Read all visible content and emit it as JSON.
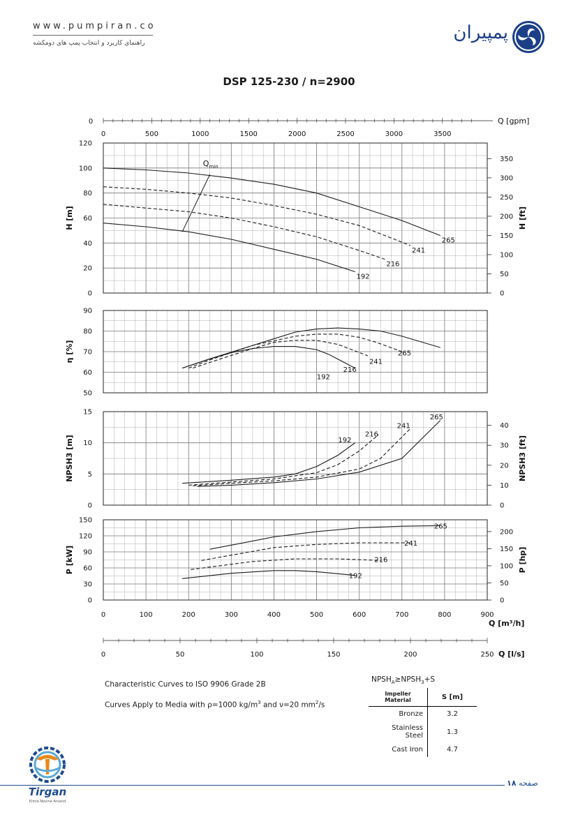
{
  "header": {
    "url": "www.pumpiran.co",
    "subtitle": "راهنمای کاربرد و انتخاب پمپ های دومکشه",
    "logo_text": "پمپیران"
  },
  "title": "DSP 125-230 / n=2900",
  "chart_data": [
    {
      "type": "line",
      "panel": "head",
      "ylabel": "H [m]",
      "ylim": [
        0,
        120
      ],
      "yticks": [
        "0",
        "20",
        "40",
        "60",
        "80",
        "100",
        "120"
      ],
      "y2label": "H [ft]",
      "y2ticks": [
        "0",
        "50",
        "100",
        "150",
        "200",
        "250",
        "300",
        "350"
      ],
      "series": [
        {
          "name": "265",
          "style": "solid",
          "x": [
            0,
            100,
            200,
            300,
            400,
            500,
            600,
            700,
            790
          ],
          "y": [
            100,
            98.5,
            96,
            92,
            87,
            80,
            69,
            58,
            46
          ]
        },
        {
          "name": "241",
          "style": "dashed",
          "x": [
            0,
            100,
            200,
            300,
            400,
            500,
            600,
            720
          ],
          "y": [
            85,
            83,
            80,
            76,
            70,
            63,
            54,
            38
          ]
        },
        {
          "name": "216",
          "style": "dashed",
          "x": [
            0,
            100,
            200,
            300,
            400,
            500,
            600,
            660
          ],
          "y": [
            71,
            68,
            65,
            60,
            53,
            45,
            34,
            27
          ]
        },
        {
          "name": "192",
          "style": "solid",
          "x": [
            0,
            100,
            200,
            300,
            400,
            500,
            590
          ],
          "y": [
            56,
            53,
            49,
            43,
            35,
            27,
            17
          ]
        }
      ],
      "qmin": {
        "label": "Q",
        "sub": "min",
        "x": [
          185,
          250
        ],
        "y": [
          49,
          95
        ]
      }
    },
    {
      "type": "line",
      "panel": "efficiency",
      "ylabel": "η [%]",
      "ylim": [
        50,
        90
      ],
      "yticks": [
        "50",
        "60",
        "70",
        "80",
        "90"
      ],
      "series": [
        {
          "name": "265",
          "style": "solid",
          "x": [
            185,
            250,
            350,
            450,
            500,
            550,
            600,
            650,
            700,
            790
          ],
          "y": [
            62,
            66.5,
            73,
            79.5,
            81,
            81.5,
            81,
            80,
            77.5,
            72
          ]
        },
        {
          "name": "241",
          "style": "dashed",
          "x": [
            200,
            250,
            350,
            450,
            500,
            550,
            600,
            640,
            700
          ],
          "y": [
            62,
            66,
            73,
            77.5,
            78.5,
            78.5,
            77,
            74.5,
            70
          ]
        },
        {
          "name": "216",
          "style": "dashed",
          "x": [
            210,
            260,
            350,
            400,
            450,
            500,
            550,
            620
          ],
          "y": [
            62,
            65.5,
            71.5,
            74.5,
            75.5,
            75.5,
            73.5,
            68
          ]
        },
        {
          "name": "192",
          "style": "solid",
          "x": [
            185,
            250,
            300,
            350,
            400,
            450,
            500,
            530,
            590
          ],
          "y": [
            62,
            66.5,
            69.5,
            71.5,
            72.5,
            72.5,
            71,
            68.5,
            62
          ]
        }
      ],
      "labels": [
        {
          "text": "265",
          "x": 710,
          "y": 69.5
        },
        {
          "text": "241",
          "x": 643,
          "y": 65.5
        },
        {
          "text": "216",
          "x": 582,
          "y": 61.5
        },
        {
          "text": "192",
          "x": 520,
          "y": 58
        }
      ]
    },
    {
      "type": "line",
      "panel": "npsh",
      "ylabel": "NPSH3 [m]",
      "ylim": [
        0,
        15
      ],
      "yticks": [
        "0",
        "5",
        "10",
        "15"
      ],
      "y2label": "NPSH3 [ft]",
      "y2ticks": [
        "0",
        "10",
        "20",
        "30",
        "40"
      ],
      "series": [
        {
          "name": "192",
          "style": "solid",
          "x": [
            185,
            300,
            400,
            450,
            500,
            550,
            590
          ],
          "y": [
            3.5,
            4,
            4.5,
            5,
            6.2,
            8,
            10
          ]
        },
        {
          "name": "216",
          "style": "dashed",
          "x": [
            200,
            300,
            400,
            500,
            550,
            600,
            645
          ],
          "y": [
            3.2,
            3.7,
            4.2,
            5.2,
            6.5,
            8.7,
            11.3
          ]
        },
        {
          "name": "241",
          "style": "dashed",
          "x": [
            210,
            300,
            400,
            500,
            600,
            650,
            720
          ],
          "y": [
            3.1,
            3.5,
            3.9,
            4.5,
            5.8,
            7.5,
            12.3
          ]
        },
        {
          "name": "265",
          "style": "solid",
          "x": [
            220,
            300,
            400,
            500,
            600,
            700,
            790
          ],
          "y": [
            3,
            3.2,
            3.6,
            4.2,
            5.3,
            7.5,
            13.6
          ]
        }
      ],
      "labels": [
        {
          "text": "192",
          "x": 570,
          "y": 10.5
        },
        {
          "text": "216",
          "x": 633,
          "y": 11.5
        },
        {
          "text": "241",
          "x": 708,
          "y": 12.8
        },
        {
          "text": "265",
          "x": 785,
          "y": 14.2
        }
      ]
    },
    {
      "type": "line",
      "panel": "power",
      "ylabel": "P [kW]",
      "ylim": [
        0,
        150
      ],
      "yticks": [
        "0",
        "30",
        "60",
        "90",
        "120",
        "150"
      ],
      "y2label": "P [hp]",
      "y2ticks": [
        "0",
        "50",
        "100",
        "150",
        "200"
      ],
      "series": [
        {
          "name": "265",
          "style": "solid",
          "x": [
            250,
            400,
            500,
            600,
            700,
            790
          ],
          "y": [
            95,
            118,
            128,
            135,
            138,
            139
          ]
        },
        {
          "name": "241",
          "style": "dashed",
          "x": [
            230,
            400,
            500,
            600,
            720
          ],
          "y": [
            74,
            98,
            104,
            107,
            107
          ]
        },
        {
          "name": "216",
          "style": "dashed",
          "x": [
            205,
            350,
            450,
            550,
            650
          ],
          "y": [
            57,
            72,
            77,
            77,
            74
          ]
        },
        {
          "name": "192",
          "style": "solid",
          "x": [
            185,
            300,
            400,
            450,
            500,
            590
          ],
          "y": [
            40,
            50,
            55,
            55,
            53,
            46
          ]
        }
      ],
      "labels": [
        {
          "text": "265",
          "x": 795,
          "y": 139
        },
        {
          "text": "241",
          "x": 725,
          "y": 107
        },
        {
          "text": "216",
          "x": 655,
          "y": 76
        },
        {
          "text": "192",
          "x": 595,
          "y": 46
        }
      ]
    }
  ],
  "axes": {
    "q_gpm": {
      "label": "Q [gpm]",
      "ticks": [
        "0",
        "500",
        "1000",
        "1500",
        "2000",
        "2500",
        "3000",
        "3500"
      ]
    },
    "q_m3h": {
      "label": "Q [m³/h]",
      "ticks": [
        "0",
        "100",
        "200",
        "300",
        "400",
        "500",
        "600",
        "700",
        "800",
        "900"
      ]
    },
    "q_ls": {
      "label": "Q [l/s]",
      "ticks": [
        "0",
        "50",
        "100",
        "150",
        "200",
        "250"
      ]
    }
  },
  "notes": {
    "line1": "Characteristic Curves to ISO 9906 Grade 2B",
    "line2_pre": "Curves Apply to Media with ",
    "line2_rho": "ρ=1000 kg/m",
    "line2_mid": " and ",
    "line2_nu": "ν=20 mm",
    "line2_post": "/s",
    "exp3": "3",
    "exp2": "2"
  },
  "npsh_table": {
    "formula_pre": "NPSH",
    "sub_a": "A",
    "formula_mid": "≥NPSH",
    "sub_3": "3",
    "formula_post": "+S",
    "head_material": "Impeller Material",
    "head_s": "S [m]",
    "rows": [
      {
        "material": "Bronze",
        "s": "3.2"
      },
      {
        "material": "Stainless Steel",
        "s": "1.3"
      },
      {
        "material": "Cast Iron",
        "s": "4.7"
      }
    ]
  },
  "footer": {
    "brand": "Tirgan",
    "brand_tag": "Kimia Novine Arvand",
    "page_label": "صفحه",
    "page_num": "۱۸"
  },
  "colors": {
    "line": "#1a1a1a",
    "grid": "#9a9a9a",
    "brand_blue": "#1c3f87",
    "brand_orange": "#e88a1c"
  }
}
